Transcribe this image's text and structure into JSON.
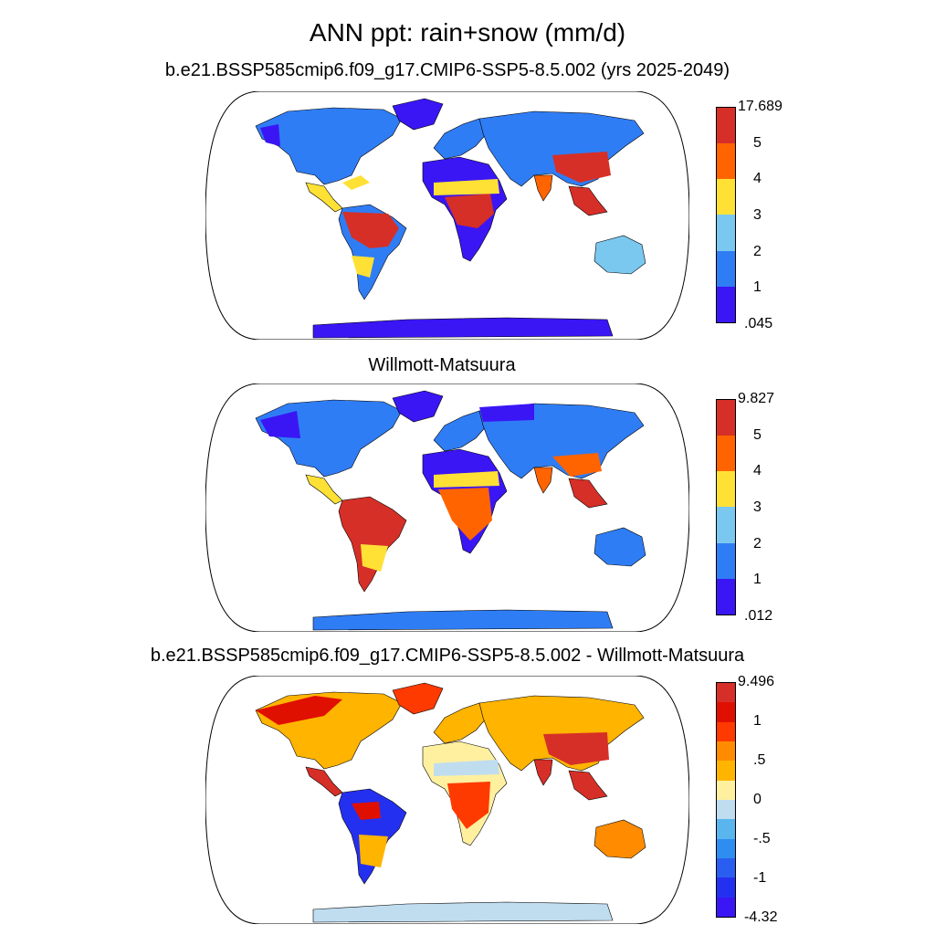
{
  "title": "ANN ppt: rain+snow (mm/d)",
  "panels": [
    {
      "title": "b.e21.BSSP585cmip6.f09_g17.CMIP6-SSP5-8.5.002 (yrs 2025-2049)",
      "colorbar": {
        "labels": [
          "17.689",
          "5",
          "4",
          "3",
          "2",
          "1",
          ".045"
        ],
        "colors": [
          "#d62f27",
          "#ff6400",
          "#ffe135",
          "#7ac8f0",
          "#2f7df5",
          "#3a16f5"
        ]
      }
    },
    {
      "title": "Willmott-Matsuura",
      "colorbar": {
        "labels": [
          "9.827",
          "5",
          "4",
          "3",
          "2",
          "1",
          ".012"
        ],
        "colors": [
          "#d62f27",
          "#ff6400",
          "#ffe135",
          "#7ac8f0",
          "#2f7df5",
          "#3a16f5"
        ]
      }
    },
    {
      "title": "b.e21.BSSP585cmip6.f09_g17.CMIP6-SSP5-8.5.002 - Willmott-Matsuura",
      "colorbar": {
        "labels": [
          "9.496",
          "1",
          ".5",
          "0",
          "-.5",
          "-1",
          "-4.32"
        ],
        "colors": [
          "#d62f27",
          "#e01000",
          "#ff3a00",
          "#ff8c00",
          "#ffb400",
          "#fff0a0",
          "#c0ddf0",
          "#5ab4ee",
          "#2e8ef0",
          "#2a5ef0",
          "#2430f0",
          "#3a16f5"
        ]
      }
    }
  ]
}
